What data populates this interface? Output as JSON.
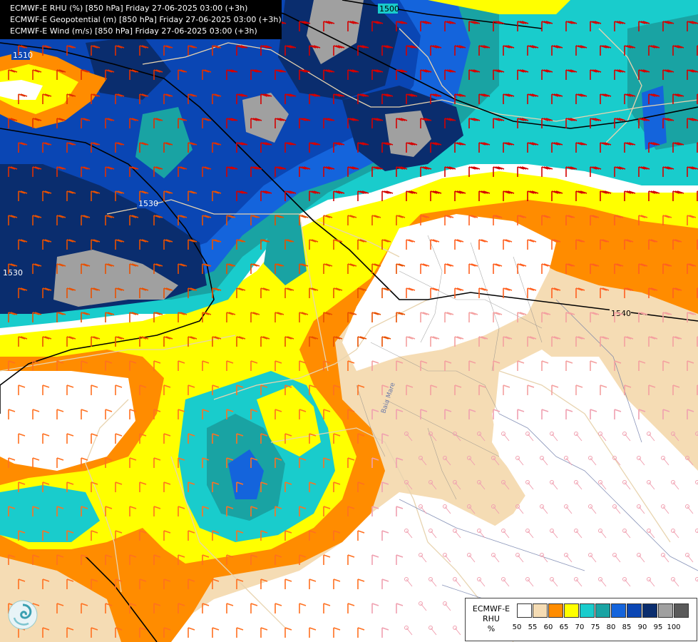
{
  "header": {
    "lines": [
      "ECMWF-E RHU (%) [850 hPa] Friday 27-06-2025 03:00 (+3h)",
      "ECMWF-E Geopotential (m) [850 hPa] Friday 27-06-2025 03:00 (+3h)",
      "ECMWF-E Wind (m/s) [850 hPa] Friday 27-06-2025 03:00 (+3h)"
    ]
  },
  "contours": {
    "labels": [
      "1500",
      "1510",
      "1530",
      "1530",
      "1540"
    ]
  },
  "map_labels": {
    "river": "Baia Mare"
  },
  "legend": {
    "title_line1": "ECMWF-E",
    "title_line2": "RHU",
    "title_line3": "%",
    "colors": [
      "#ffffff",
      "#f5dcb4",
      "#ff8c00",
      "#ffff00",
      "#19cccc",
      "#19a3a3",
      "#1464dc",
      "#0a46b4",
      "#0a2d6e",
      "#a0a0a0",
      "#5a5a5a"
    ],
    "ticks": [
      "50",
      "55",
      "60",
      "65",
      "70",
      "75",
      "80",
      "85",
      "90",
      "95",
      "100"
    ]
  },
  "logo": "ecmwf-swirl-logo"
}
